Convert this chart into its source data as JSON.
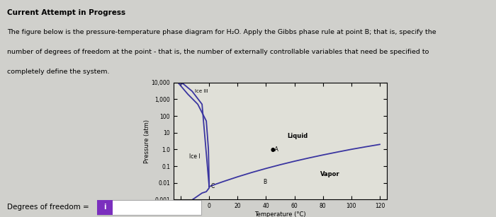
{
  "title": "Current Attempt in Progress",
  "question_line1": "The figure below is the pressure-temperature phase diagram for H₂O. Apply the Gibbs phase rule at point B; that is, specify the",
  "question_line2": "number of degrees of freedom at the point - that is, the number of externally controllable variables that need be specified to",
  "question_line3": "completely define the system.",
  "xlabel": "Temperature (°C)",
  "ylabel": "Pressure (atm)",
  "xlim": [
    -25,
    125
  ],
  "x_ticks": [
    -20,
    0,
    20,
    40,
    60,
    80,
    100,
    120
  ],
  "y_ticks": [
    0.001,
    0.01,
    0.1,
    1.0,
    10,
    100,
    1000,
    10000
  ],
  "y_tick_labels": [
    "0.001",
    "0.01",
    "0.1",
    "1.0",
    "10",
    "100",
    "1,000",
    "10,000"
  ],
  "line_color": "#3a35a0",
  "bg_color": "#d0d0cc",
  "plot_bg": "#e0e0d8",
  "label_liquid": "Liquid",
  "label_vapor": "Vapor",
  "label_ice_I": "Ice I",
  "label_ice_III": "Ice III",
  "degrees_freedom_label": "Degrees of freedom =",
  "input_box_color": "#7b2fbe",
  "input_text": "i"
}
